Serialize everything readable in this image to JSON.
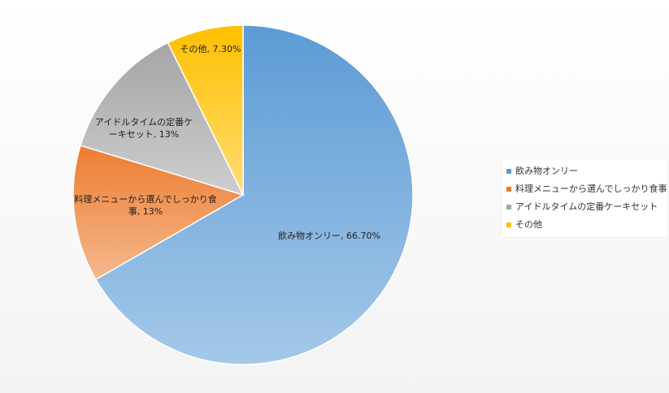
{
  "chart_data": {
    "type": "pie",
    "categories": [
      "飲み物オンリー",
      "料理メニューから選んでしっかり食事",
      "アイドルタイムの定番ケーキセット",
      "その他"
    ],
    "values": [
      66.7,
      13,
      13,
      7.3
    ],
    "value_labels": [
      "飲み物オンリー, 66.70%",
      "料理メニューから選んでしっかり食事, 13%",
      "アイドルタイムの定番ケーキセット, 13%",
      "その他, 7.30%"
    ],
    "colors": [
      "#5b9bd5",
      "#ed7d31",
      "#a5a5a5",
      "#ffc000"
    ],
    "legend": "right"
  }
}
